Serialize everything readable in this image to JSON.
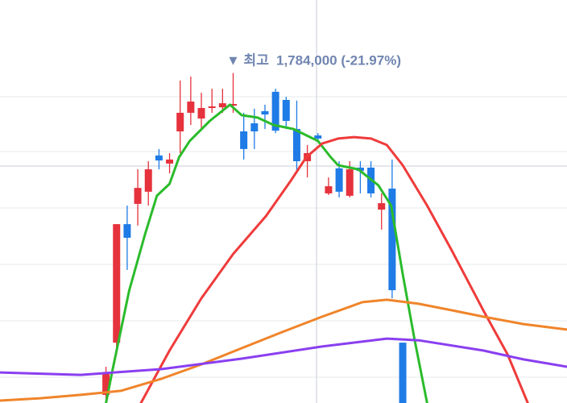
{
  "chart_data": {
    "type": "candlestick",
    "annotation": {
      "marker": "▼ 최고",
      "text": "1,784,000 (-21.97%)"
    },
    "x": [
      0,
      1,
      2,
      3,
      4,
      5,
      6,
      7,
      8,
      9,
      10,
      11,
      12,
      13,
      14,
      15,
      16,
      17,
      18,
      19,
      20,
      21,
      22,
      23,
      24,
      25,
      26,
      27,
      28
    ],
    "open": [
      434000,
      653000,
      1150000,
      1235000,
      1286000,
      1438000,
      1404000,
      1539000,
      1617000,
      1593000,
      1637000,
      1640000,
      1647000,
      1539000,
      1573000,
      1624000,
      1705000,
      1671000,
      1549000,
      1414000,
      1522000,
      1279000,
      1384000,
      1269000,
      1387000,
      1387000,
      1211000,
      1299000,
      653000
    ],
    "high": [
      552000,
      1150000,
      1228000,
      1380000,
      1414000,
      1465000,
      1448000,
      1752000,
      1769000,
      1701000,
      1718000,
      1718000,
      1784000,
      1617000,
      1634000,
      1651000,
      1718000,
      1684000,
      1668000,
      1482000,
      1532000,
      1346000,
      1414000,
      1414000,
      1414000,
      1414000,
      1279000,
      1421000,
      653000
    ],
    "low": [
      400000,
      603000,
      958000,
      1144000,
      1228000,
      1380000,
      1363000,
      1448000,
      1566000,
      1549000,
      1617000,
      1617000,
      1617000,
      1421000,
      1465000,
      1549000,
      1532000,
      1549000,
      1363000,
      1346000,
      1499000,
      1272000,
      1262000,
      1262000,
      1279000,
      1262000,
      1127000,
      839000,
      400000
    ],
    "close": [
      528000,
      1150000,
      1093000,
      1302000,
      1380000,
      1417000,
      1421000,
      1617000,
      1664000,
      1637000,
      1644000,
      1657000,
      1654000,
      1465000,
      1539000,
      1610000,
      1542000,
      1583000,
      1414000,
      1448000,
      1509000,
      1309000,
      1286000,
      1380000,
      1373000,
      1279000,
      1238000,
      873000,
      400000
    ],
    "up_color": "#e5323c",
    "down_color": "#1f7be6",
    "lines": [
      {
        "color": "#2bbb2b",
        "x": [
          0,
          0.6,
          2.2,
          3.7,
          4.8,
          6,
          6.9,
          7.9,
          9.8,
          11.7,
          12.8,
          14.3,
          15.8,
          17.7,
          20,
          21.2,
          21.9,
          23.8,
          25.7,
          26.9,
          28,
          29.1,
          30.3
        ],
        "values": [
          400000,
          535000,
          873000,
          1110000,
          1269000,
          1319000,
          1431000,
          1499000,
          1583000,
          1651000,
          1607000,
          1597000,
          1566000,
          1549000,
          1499000,
          1431000,
          1397000,
          1380000,
          1313000,
          1228000,
          941000,
          670000,
          400000
        ]
      },
      {
        "color": "#ef3b3b",
        "x": [
          3.3,
          6,
          9,
          12,
          15.1,
          17.4,
          18.9,
          20.4,
          21.9,
          23.4,
          25,
          26.5,
          28,
          30.3,
          32.6,
          35.6,
          37.9,
          39.8
        ],
        "values": [
          400000,
          620000,
          839000,
          1025000,
          1184000,
          1330000,
          1431000,
          1488000,
          1509000,
          1515000,
          1509000,
          1482000,
          1397000,
          1228000,
          1042000,
          789000,
          603000,
          400000
        ]
      },
      {
        "color": "#f0842a",
        "x": [
          -10,
          -6.2,
          -2.4,
          1.4,
          5.2,
          9,
          12.8,
          16.6,
          20.4,
          24.2,
          26.5,
          29.5,
          32.6,
          35.6,
          39.4,
          43.5
        ],
        "values": [
          410000,
          420000,
          434000,
          451000,
          501000,
          562000,
          630000,
          697000,
          762000,
          823000,
          833000,
          816000,
          789000,
          762000,
          731000,
          708000
        ]
      },
      {
        "color": "#8a3ff0",
        "x": [
          -10,
          -2.4,
          5.2,
          12.8,
          20.4,
          26.5,
          29.5,
          35.6,
          39.4,
          43.5
        ],
        "values": [
          528000,
          518000,
          542000,
          586000,
          637000,
          670000,
          663000,
          620000,
          583000,
          552000
        ]
      }
    ],
    "xlim": [
      -10,
      43.5
    ],
    "ylim": [
      400000,
      2090000
    ]
  }
}
